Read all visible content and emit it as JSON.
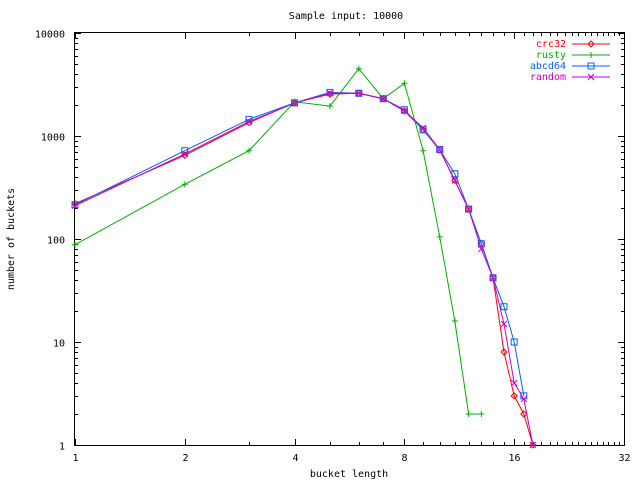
{
  "chart_data": {
    "type": "line",
    "title": "Sample input: 10000",
    "xlabel": "bucket length",
    "ylabel": "number of buckets",
    "x_scale": "log2",
    "y_scale": "log10",
    "xlim": [
      1,
      32
    ],
    "ylim": [
      1,
      10000
    ],
    "x_ticks": [
      1,
      2,
      4,
      8,
      16,
      32
    ],
    "x_tick_labels": [
      "1",
      "2",
      "4",
      "8",
      "16",
      "32"
    ],
    "y_ticks": [
      1,
      10,
      100,
      1000,
      10000
    ],
    "y_tick_labels": [
      "1",
      "10",
      "100",
      "1000",
      "10000"
    ],
    "grid": false,
    "legend": "top-right",
    "series": [
      {
        "name": "crc32",
        "color": "#ff0000",
        "marker": "diamond",
        "x": [
          1,
          2,
          3,
          4,
          5,
          6,
          7,
          8,
          9,
          10,
          11,
          12,
          13,
          14,
          15,
          16,
          17,
          18
        ],
        "y": [
          220,
          650,
          1350,
          2100,
          2550,
          2600,
          2300,
          1750,
          1150,
          730,
          370,
          195,
          90,
          42,
          8,
          3,
          2,
          1
        ]
      },
      {
        "name": "rusty",
        "color": "#00b000",
        "marker": "plus",
        "x": [
          1,
          2,
          3,
          4,
          5,
          6,
          7,
          8,
          9,
          10,
          11,
          12,
          13
        ],
        "y": [
          88,
          340,
          720,
          2150,
          1950,
          4500,
          2300,
          3250,
          720,
          105,
          16,
          2,
          2
        ]
      },
      {
        "name": "abcd64",
        "color": "#0060ff",
        "marker": "square",
        "x": [
          1,
          2,
          3,
          4,
          5,
          6,
          7,
          8,
          9,
          10,
          11,
          12,
          13,
          14,
          15,
          16,
          17
        ],
        "y": [
          215,
          720,
          1450,
          2100,
          2650,
          2600,
          2300,
          1800,
          1150,
          740,
          430,
          195,
          90,
          42,
          22,
          10,
          3
        ]
      },
      {
        "name": "random",
        "color": "#cc00cc",
        "marker": "cross",
        "x": [
          1,
          2,
          3,
          4,
          5,
          6,
          7,
          8,
          9,
          10,
          11,
          12,
          13,
          14,
          15,
          16,
          17,
          18
        ],
        "y": [
          210,
          670,
          1380,
          2080,
          2600,
          2600,
          2300,
          1750,
          1200,
          740,
          370,
          195,
          80,
          42,
          15,
          4,
          2.8,
          1
        ]
      }
    ]
  }
}
